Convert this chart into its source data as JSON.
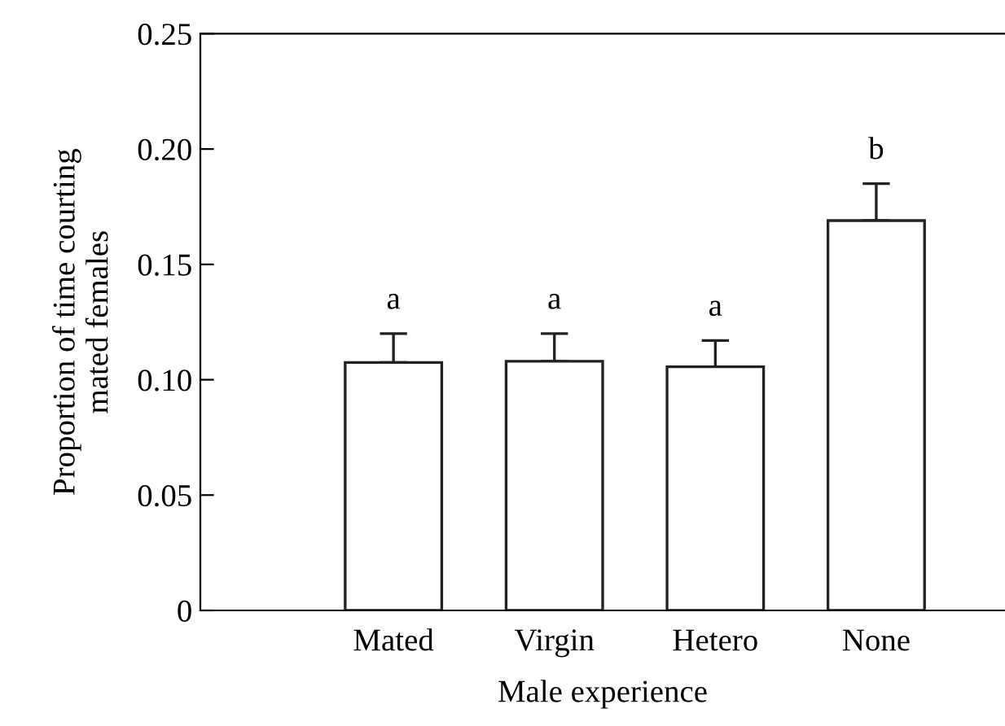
{
  "chart_data": {
    "type": "bar",
    "xlabel": "Male experience",
    "ylabel": "Proportion of time courting\nmated females",
    "categories": [
      "Mated",
      "Virgin",
      "Hetero",
      "None"
    ],
    "values": [
      0.1075,
      0.108,
      0.1056,
      0.169
    ],
    "errors": [
      [
        0.1075,
        0.12
      ],
      [
        0.108,
        0.12
      ],
      [
        0.1056,
        0.117
      ],
      [
        0.169,
        0.185
      ]
    ],
    "color": "#ffffff",
    "ylim": [
      0,
      0.25
    ],
    "yticks": [
      {
        "value": 0,
        "label": "0"
      },
      {
        "value": 0.05,
        "label": "0.05"
      },
      {
        "value": 0.1,
        "label": "0.10"
      },
      {
        "value": 0.15,
        "label": "0.15"
      },
      {
        "value": 0.2,
        "label": "0.20"
      },
      {
        "value": 0.25,
        "label": "0.25"
      }
    ],
    "grid": false,
    "annotations": [
      "a",
      "a",
      "a",
      "b"
    ]
  }
}
